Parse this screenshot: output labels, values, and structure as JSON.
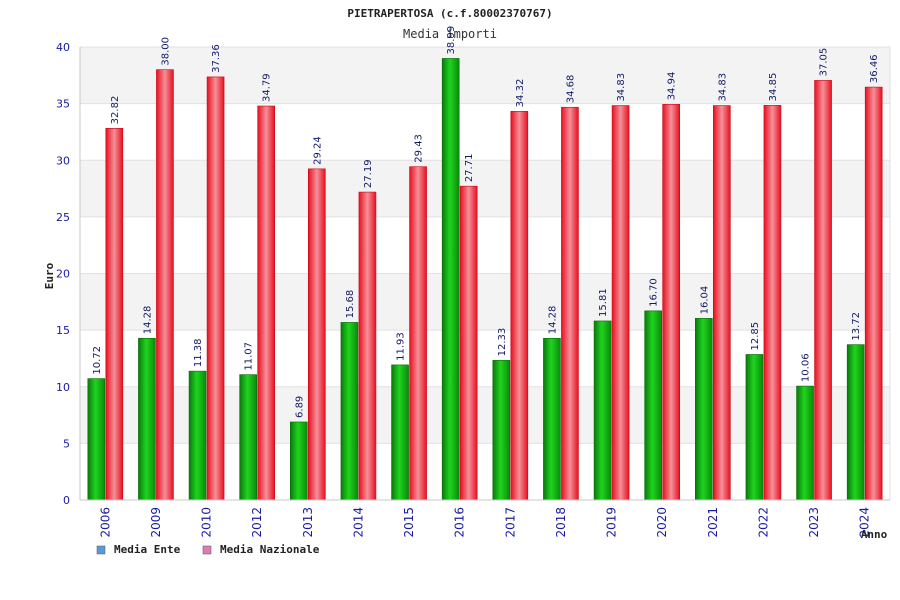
{
  "chart_data": {
    "type": "bar",
    "title": "PIETRAPERTOSA (c.f.80002370767)",
    "subtitle": "Media importi",
    "ylabel": "Euro",
    "xlabel": "Anno",
    "ylim": [
      0,
      40
    ],
    "yticks": [
      0,
      5,
      10,
      15,
      20,
      25,
      30,
      35,
      40
    ],
    "grid": "horizontal, alternating bands",
    "legend_position": "bottom-left",
    "categories": [
      "2006",
      "2009",
      "2010",
      "2012",
      "2013",
      "2014",
      "2015",
      "2016",
      "2017",
      "2018",
      "2019",
      "2020",
      "2021",
      "2022",
      "2023",
      "2024"
    ],
    "series": [
      {
        "name": "Media Ente",
        "legend_color": "#5b9bd5",
        "bar_color": "#16b516",
        "values": [
          10.72,
          14.28,
          11.38,
          11.07,
          6.89,
          15.68,
          11.93,
          38.99,
          12.33,
          14.28,
          15.81,
          16.7,
          16.04,
          12.85,
          10.06,
          13.72
        ],
        "labels": [
          "10.72",
          "14.28",
          "11.38",
          "11.07",
          "6.89",
          "15.68",
          "11.93",
          "38.99",
          "12.33",
          "14.28",
          "15.81",
          "16.70",
          "16.04",
          "12.85",
          "10.06",
          "13.72"
        ]
      },
      {
        "name": "Media Nazionale",
        "legend_color": "#e07ab0",
        "bar_color": "#ee2a3a",
        "values": [
          32.82,
          38.0,
          37.36,
          34.79,
          29.24,
          27.19,
          29.43,
          27.71,
          34.32,
          34.68,
          34.83,
          34.94,
          34.83,
          34.85,
          37.05,
          36.46
        ],
        "labels": [
          "32.82",
          "38.00",
          "37.36",
          "34.79",
          "29.24",
          "27.19",
          "29.43",
          "27.71",
          "34.32",
          "34.68",
          "34.83",
          "34.94",
          "34.83",
          "34.85",
          "37.05",
          "36.46"
        ]
      }
    ]
  }
}
